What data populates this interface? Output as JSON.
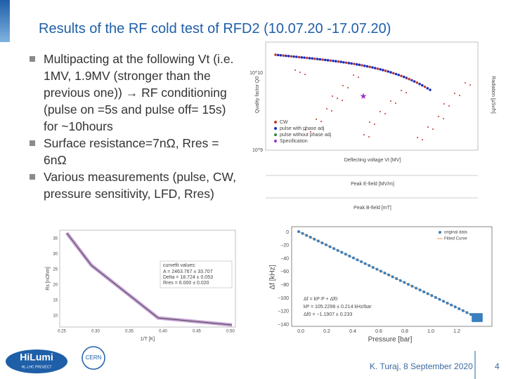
{
  "title": "Results of the RF cold test of RFD2 (10.07.20 -17.07.20)",
  "bullets": [
    "Multipacting at the following Vt (i.e. 1MV, 1.9MV (stronger than the previous one)) → RF conditioning (pulse on =5s and pulse off= 15s) for ~10hours",
    "Surface resistance=7nΩ, Rres = 6nΩ",
    "Various measurements (pulse, CW, pressure sensitivity, LFD, Rres)"
  ],
  "plots": {
    "q_curve": {
      "y_label": "Quality factor Q0",
      "y2_label": "Radiation [µSv/h]",
      "x_label": "Deflecting voltage Vt [MV]",
      "x2_label": "Peak E-field [MV/m]",
      "x3_label": "Peak B-field [mT]",
      "y_ticks": [
        "10^10",
        "10^9"
      ],
      "legend": [
        "CW",
        "pulse with phase adj",
        "pulse without phase adj",
        "Specification"
      ]
    },
    "rs_fit": {
      "box_title": "curvefit values:",
      "box_lines": [
        "A = 2463.767 ± 33.707",
        "Delta = 18.724 ± 0.053",
        "Rres = 6.000 ± 0.020"
      ],
      "x_label": "1/T [K]",
      "y_label": "Rs [nOhm]",
      "x_ticks": [
        "0.25",
        "0.30",
        "0.35",
        "0.40",
        "0.45",
        "0.50"
      ],
      "y_ticks": [
        "35",
        "30",
        "25",
        "20",
        "15",
        "10"
      ]
    },
    "pressure": {
      "legend": [
        "original data",
        "Fitted Curve"
      ],
      "x_label": "Pressure [bar]",
      "y_label": "Δf [kHz]",
      "x_ticks": [
        "0.0",
        "0.2",
        "0.4",
        "0.6",
        "0.8",
        "1.0",
        "1.2"
      ],
      "y_ticks": [
        "0",
        "−20",
        "−40",
        "−60",
        "−80",
        "−100",
        "−120",
        "−140"
      ],
      "equations": [
        "Δf = kP·P + Δf0",
        "kP = 105.2298 ± 0.214 kHz/bar",
        "Δf0 = −1.1907 ± 0.233"
      ]
    }
  },
  "logos": [
    "HiLumi",
    "HL-LHC PROJECT",
    "CERN"
  ],
  "footer": "K. Turaj, 8 September 2020",
  "page": "4"
}
